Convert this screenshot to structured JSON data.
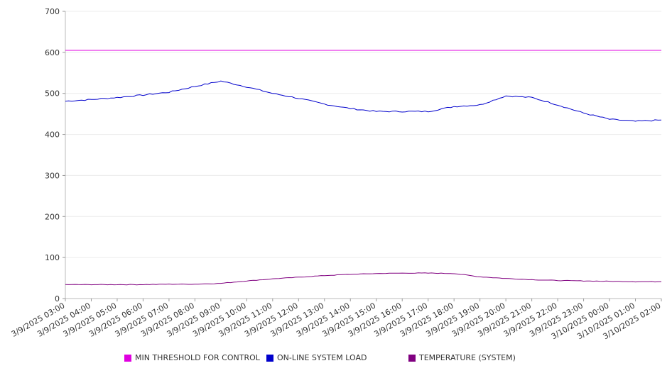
{
  "chart_data": {
    "type": "line",
    "x": [
      "3/9/2025 03:00",
      "3/9/2025 04:00",
      "3/9/2025 05:00",
      "3/9/2025 06:00",
      "3/9/2025 07:00",
      "3/9/2025 08:00",
      "3/9/2025 09:00",
      "3/9/2025 10:00",
      "3/9/2025 11:00",
      "3/9/2025 12:00",
      "3/9/2025 13:00",
      "3/9/2025 14:00",
      "3/9/2025 15:00",
      "3/9/2025 16:00",
      "3/9/2025 17:00",
      "3/9/2025 18:00",
      "3/9/2025 19:00",
      "3/9/2025 20:00",
      "3/9/2025 21:00",
      "3/9/2025 22:00",
      "3/9/2025 23:00",
      "3/10/2025 00:00",
      "3/10/2025 01:00",
      "3/10/2025 02:00"
    ],
    "ylim": [
      0,
      700
    ],
    "yticks": [
      0,
      100,
      200,
      300,
      400,
      500,
      600,
      700
    ],
    "grid": true,
    "legend_position": "bottom",
    "series": [
      {
        "name": "MIN THRESHOLD FOR CONTROL",
        "color": "#e000e0",
        "values": [
          605,
          605,
          605,
          605,
          605,
          605,
          605,
          605,
          605,
          605,
          605,
          605,
          605,
          605,
          605,
          605,
          605,
          605,
          605,
          605,
          605,
          605,
          605,
          605
        ]
      },
      {
        "name": "ON-LINE SYSTEM LOAD",
        "color": "#0000cc",
        "values": [
          481,
          485,
          490,
          496,
          503,
          517,
          530,
          516,
          500,
          488,
          474,
          463,
          456,
          456,
          456,
          468,
          472,
          494,
          490,
          472,
          452,
          437,
          432,
          435
        ]
      },
      {
        "name": "TEMPERATURE (SYSTEM)",
        "color": "#800080",
        "values": [
          34,
          34,
          34,
          34,
          35,
          35,
          37,
          43,
          48,
          52,
          56,
          59,
          61,
          62,
          62,
          61,
          53,
          49,
          46,
          44,
          43,
          42,
          41,
          41
        ]
      }
    ]
  }
}
